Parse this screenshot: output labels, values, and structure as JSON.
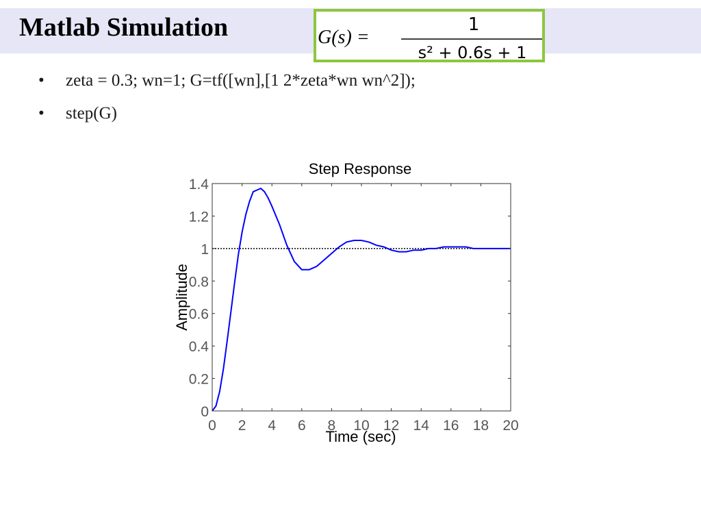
{
  "slide": {
    "title": "Matlab Simulation",
    "accent_band_color": "#e6e6f7",
    "formula_border_color": "#8dc63f",
    "formula": {
      "lhs": "G(s) =",
      "numerator": "1",
      "denominator": "s² + 0.6s + 1"
    },
    "bullets": [
      "zeta = 0.3; wn=1; G=tf([wn],[1 2*zeta*wn wn^2]);",
      "step(G)"
    ]
  },
  "chart_data": {
    "type": "line",
    "title": "Step Response",
    "xlabel": "Time (sec)",
    "ylabel": "Amplitude",
    "xlim": [
      0,
      20
    ],
    "ylim": [
      0,
      1.4
    ],
    "xticks": [
      0,
      2,
      4,
      6,
      8,
      10,
      12,
      14,
      16,
      18,
      20
    ],
    "yticks": [
      0,
      0.2,
      0.4,
      0.6,
      0.8,
      1,
      1.2,
      1.4
    ],
    "ytick_labels": [
      "0",
      "0.2",
      "0.4",
      "0.6",
      "0.8",
      "1",
      "1.2",
      "1.4"
    ],
    "grid": false,
    "reference_line": {
      "y": 1,
      "style": "dotted",
      "color": "#000000"
    },
    "series": [
      {
        "color": "#0000ff",
        "x": [
          0,
          0.25,
          0.5,
          0.75,
          1,
          1.25,
          1.5,
          1.75,
          2,
          2.25,
          2.5,
          2.75,
          3,
          3.25,
          3.5,
          3.75,
          4,
          4.5,
          5,
          5.5,
          6,
          6.5,
          7,
          7.5,
          8,
          8.5,
          9,
          9.5,
          10,
          10.5,
          11,
          11.5,
          12,
          12.5,
          13,
          13.5,
          14,
          14.5,
          15,
          15.5,
          16,
          16.5,
          17,
          17.5,
          18,
          18.5,
          19,
          19.5,
          20
        ],
        "y": [
          0,
          0.03,
          0.12,
          0.26,
          0.43,
          0.61,
          0.79,
          0.96,
          1.1,
          1.21,
          1.29,
          1.35,
          1.36,
          1.37,
          1.35,
          1.31,
          1.26,
          1.15,
          1.02,
          0.92,
          0.87,
          0.87,
          0.89,
          0.93,
          0.97,
          1.01,
          1.04,
          1.05,
          1.05,
          1.04,
          1.02,
          1.01,
          0.99,
          0.98,
          0.98,
          0.99,
          0.99,
          1.0,
          1.0,
          1.01,
          1.01,
          1.01,
          1.01,
          1.0,
          1.0,
          1.0,
          1.0,
          1.0,
          1.0
        ]
      }
    ]
  }
}
